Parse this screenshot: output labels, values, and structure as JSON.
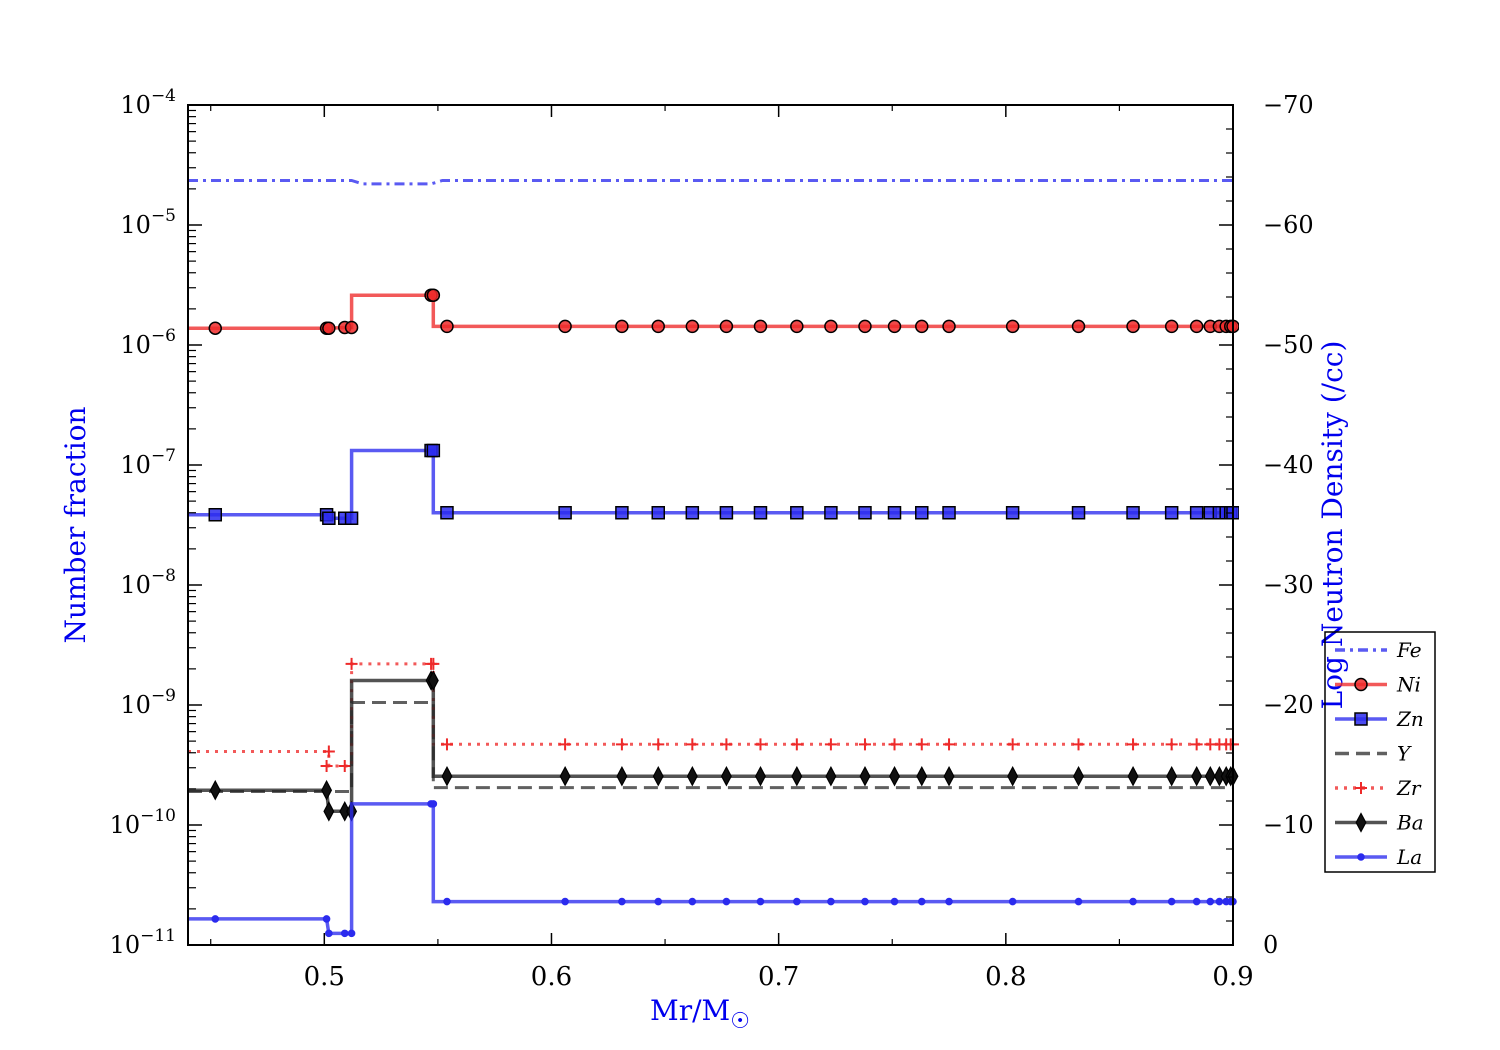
{
  "chart_data": {
    "type": "line",
    "title": "",
    "xlabel": "Mr/M",
    "xlabel_symbol": "☉",
    "ylabel": "Number fraction",
    "y2label": "Log Neutron Density (/cc)",
    "xlim": [
      0.44,
      0.9
    ],
    "ylim": [
      1e-11,
      0.0001
    ],
    "y_scale": "log",
    "y2lim": [
      0,
      -70
    ],
    "x_ticks": [
      0.5,
      0.6,
      0.7,
      0.8,
      0.9
    ],
    "x_tick_labels": [
      "0.5",
      "0.6",
      "0.7",
      "0.8",
      "0.9"
    ],
    "y_tick_bases": [
      "10",
      "10",
      "10",
      "10",
      "10",
      "10",
      "10",
      "10"
    ],
    "y_tick_exponents": [
      "−11",
      "−10",
      "−9",
      "−8",
      "−7",
      "−6",
      "−5",
      "−4"
    ],
    "y2_ticks": [
      0,
      -10,
      -20,
      -30,
      -40,
      -50,
      -60,
      -70
    ],
    "y2_tick_labels": [
      "0",
      "−10",
      "−20",
      "−30",
      "−40",
      "−50",
      "−60",
      "−70"
    ],
    "grid": false,
    "legend_position": "right",
    "colors": {
      "axis_label": "#0000ee",
      "red": "#ee2a2a",
      "blue": "#2b2bee",
      "black": "#222222"
    },
    "series": [
      {
        "name": "Fe",
        "color": "#2b2bee",
        "style": "dashdot",
        "marker": "none",
        "points": [
          [
            0.44,
            2.35e-05
          ],
          [
            0.512,
            2.35e-05
          ],
          [
            0.517,
            2.2e-05
          ],
          [
            0.547,
            2.2e-05
          ],
          [
            0.552,
            2.35e-05
          ],
          [
            0.9,
            2.35e-05
          ]
        ]
      },
      {
        "name": "Ni",
        "color": "#ee2a2a",
        "style": "solid",
        "marker": "circle",
        "points": [
          [
            0.44,
            1.38e-06
          ],
          [
            0.452,
            1.38e-06
          ],
          [
            0.501,
            1.38e-06
          ],
          [
            0.502,
            1.38e-06
          ],
          [
            0.509,
            1.4e-06
          ],
          [
            0.512,
            1.4e-06
          ],
          [
            0.512,
            2.6e-06
          ],
          [
            0.547,
            2.6e-06
          ],
          [
            0.548,
            2.6e-06
          ],
          [
            0.548,
            1.43e-06
          ],
          [
            0.554,
            1.43e-06
          ],
          [
            0.606,
            1.43e-06
          ],
          [
            0.631,
            1.43e-06
          ],
          [
            0.647,
            1.43e-06
          ],
          [
            0.662,
            1.43e-06
          ],
          [
            0.677,
            1.43e-06
          ],
          [
            0.692,
            1.43e-06
          ],
          [
            0.708,
            1.43e-06
          ],
          [
            0.723,
            1.43e-06
          ],
          [
            0.738,
            1.43e-06
          ],
          [
            0.751,
            1.43e-06
          ],
          [
            0.763,
            1.43e-06
          ],
          [
            0.775,
            1.43e-06
          ],
          [
            0.803,
            1.43e-06
          ],
          [
            0.832,
            1.43e-06
          ],
          [
            0.856,
            1.43e-06
          ],
          [
            0.873,
            1.43e-06
          ],
          [
            0.884,
            1.43e-06
          ],
          [
            0.89,
            1.43e-06
          ],
          [
            0.894,
            1.43e-06
          ],
          [
            0.897,
            1.43e-06
          ],
          [
            0.899,
            1.43e-06
          ],
          [
            0.9,
            1.43e-06
          ]
        ],
        "markers": [
          0.452,
          0.501,
          0.502,
          0.509,
          0.512,
          0.547,
          0.548,
          0.554,
          0.606,
          0.631,
          0.647,
          0.662,
          0.677,
          0.692,
          0.708,
          0.723,
          0.738,
          0.751,
          0.763,
          0.775,
          0.803,
          0.832,
          0.856,
          0.873,
          0.884,
          0.89,
          0.894,
          0.897,
          0.899,
          0.9
        ],
        "marker_values": [
          1.38e-06,
          1.38e-06,
          1.38e-06,
          1.4e-06,
          1.4e-06,
          2.6e-06,
          2.6e-06,
          1.43e-06,
          1.43e-06,
          1.43e-06,
          1.43e-06,
          1.43e-06,
          1.43e-06,
          1.43e-06,
          1.43e-06,
          1.43e-06,
          1.43e-06,
          1.43e-06,
          1.43e-06,
          1.43e-06,
          1.43e-06,
          1.43e-06,
          1.43e-06,
          1.43e-06,
          1.43e-06,
          1.43e-06,
          1.43e-06,
          1.43e-06,
          1.43e-06,
          1.43e-06
        ]
      },
      {
        "name": "Zn",
        "color": "#2b2bee",
        "style": "solid",
        "marker": "square",
        "points": [
          [
            0.44,
            3.85e-08
          ],
          [
            0.452,
            3.85e-08
          ],
          [
            0.501,
            3.85e-08
          ],
          [
            0.502,
            3.6e-08
          ],
          [
            0.509,
            3.6e-08
          ],
          [
            0.512,
            3.6e-08
          ],
          [
            0.512,
            1.32e-07
          ],
          [
            0.547,
            1.32e-07
          ],
          [
            0.548,
            1.32e-07
          ],
          [
            0.548,
            4e-08
          ],
          [
            0.554,
            4e-08
          ],
          [
            0.9,
            4e-08
          ]
        ],
        "markers": [
          0.452,
          0.501,
          0.502,
          0.509,
          0.512,
          0.547,
          0.548,
          0.554,
          0.606,
          0.631,
          0.647,
          0.662,
          0.677,
          0.692,
          0.708,
          0.723,
          0.738,
          0.751,
          0.763,
          0.775,
          0.803,
          0.832,
          0.856,
          0.873,
          0.884,
          0.89,
          0.894,
          0.897,
          0.899,
          0.9
        ],
        "marker_values": [
          3.85e-08,
          3.85e-08,
          3.6e-08,
          3.6e-08,
          3.6e-08,
          1.32e-07,
          1.32e-07,
          4e-08,
          4e-08,
          4e-08,
          4e-08,
          4e-08,
          4e-08,
          4e-08,
          4e-08,
          4e-08,
          4e-08,
          4e-08,
          4e-08,
          4e-08,
          4e-08,
          4e-08,
          4e-08,
          4e-08,
          4e-08,
          4e-08,
          4e-08,
          4e-08,
          4e-08,
          4e-08
        ]
      },
      {
        "name": "Y",
        "color": "#333333",
        "style": "dashed",
        "marker": "none",
        "points": [
          [
            0.44,
            1.9e-10
          ],
          [
            0.501,
            1.9e-10
          ],
          [
            0.512,
            1.9e-10
          ],
          [
            0.512,
            1.05e-09
          ],
          [
            0.548,
            1.05e-09
          ],
          [
            0.548,
            2.05e-10
          ],
          [
            0.9,
            2.05e-10
          ]
        ]
      },
      {
        "name": "Zr",
        "color": "#ee2a2a",
        "style": "dotted",
        "marker": "plus",
        "points": [
          [
            0.44,
            4.1e-10
          ],
          [
            0.502,
            4.1e-10
          ],
          [
            0.502,
            3.1e-10
          ],
          [
            0.512,
            3.1e-10
          ],
          [
            0.512,
            2.2e-09
          ],
          [
            0.548,
            2.2e-09
          ],
          [
            0.548,
            4.7e-10
          ],
          [
            0.9,
            4.7e-10
          ]
        ],
        "markers": [
          0.502,
          0.501,
          0.509,
          0.512,
          0.547,
          0.548,
          0.554,
          0.606,
          0.631,
          0.647,
          0.662,
          0.677,
          0.692,
          0.708,
          0.723,
          0.738,
          0.751,
          0.763,
          0.775,
          0.803,
          0.832,
          0.856,
          0.873,
          0.884,
          0.89,
          0.894,
          0.897,
          0.899,
          0.9
        ],
        "marker_values": [
          4.1e-10,
          3.1e-10,
          3.1e-10,
          2.2e-09,
          2.2e-09,
          2.2e-09,
          4.7e-10,
          4.7e-10,
          4.7e-10,
          4.7e-10,
          4.7e-10,
          4.7e-10,
          4.7e-10,
          4.7e-10,
          4.7e-10,
          4.7e-10,
          4.7e-10,
          4.7e-10,
          4.7e-10,
          4.7e-10,
          4.7e-10,
          4.7e-10,
          4.7e-10,
          4.7e-10,
          4.7e-10,
          4.7e-10,
          4.7e-10,
          4.7e-10,
          4.7e-10
        ]
      },
      {
        "name": "Ba",
        "color": "#222222",
        "style": "solid",
        "marker": "diamond",
        "points": [
          [
            0.44,
            1.95e-10
          ],
          [
            0.452,
            1.95e-10
          ],
          [
            0.501,
            1.95e-10
          ],
          [
            0.502,
            1.3e-10
          ],
          [
            0.509,
            1.3e-10
          ],
          [
            0.512,
            1.3e-10
          ],
          [
            0.512,
            1.6e-09
          ],
          [
            0.547,
            1.6e-09
          ],
          [
            0.548,
            1.6e-09
          ],
          [
            0.548,
            2.55e-10
          ],
          [
            0.554,
            2.55e-10
          ],
          [
            0.9,
            2.55e-10
          ]
        ],
        "markers": [
          0.452,
          0.501,
          0.502,
          0.509,
          0.512,
          0.547,
          0.548,
          0.554,
          0.606,
          0.631,
          0.647,
          0.662,
          0.677,
          0.692,
          0.708,
          0.723,
          0.738,
          0.751,
          0.763,
          0.775,
          0.803,
          0.832,
          0.856,
          0.873,
          0.884,
          0.89,
          0.894,
          0.897,
          0.899,
          0.9
        ],
        "marker_values": [
          1.95e-10,
          1.95e-10,
          1.3e-10,
          1.3e-10,
          1.3e-10,
          1.6e-09,
          1.6e-09,
          2.55e-10,
          2.55e-10,
          2.55e-10,
          2.55e-10,
          2.55e-10,
          2.55e-10,
          2.55e-10,
          2.55e-10,
          2.55e-10,
          2.55e-10,
          2.55e-10,
          2.55e-10,
          2.55e-10,
          2.55e-10,
          2.55e-10,
          2.55e-10,
          2.55e-10,
          2.55e-10,
          2.55e-10,
          2.55e-10,
          2.55e-10,
          2.55e-10,
          2.55e-10
        ]
      },
      {
        "name": "La",
        "color": "#2b2bee",
        "style": "solid",
        "marker": "dot",
        "points": [
          [
            0.44,
            1.65e-11
          ],
          [
            0.452,
            1.65e-11
          ],
          [
            0.501,
            1.65e-11
          ],
          [
            0.502,
            1.25e-11
          ],
          [
            0.509,
            1.25e-11
          ],
          [
            0.512,
            1.25e-11
          ],
          [
            0.512,
            1.5e-10
          ],
          [
            0.547,
            1.5e-10
          ],
          [
            0.548,
            1.5e-10
          ],
          [
            0.548,
            2.3e-11
          ],
          [
            0.554,
            2.3e-11
          ],
          [
            0.9,
            2.3e-11
          ]
        ],
        "markers": [
          0.452,
          0.501,
          0.502,
          0.509,
          0.512,
          0.547,
          0.548,
          0.554,
          0.606,
          0.631,
          0.647,
          0.662,
          0.677,
          0.692,
          0.708,
          0.723,
          0.738,
          0.751,
          0.763,
          0.775,
          0.803,
          0.832,
          0.856,
          0.873,
          0.884,
          0.89,
          0.894,
          0.897,
          0.899,
          0.9
        ],
        "marker_values": [
          1.65e-11,
          1.65e-11,
          1.25e-11,
          1.25e-11,
          1.25e-11,
          1.5e-10,
          1.5e-10,
          2.3e-11,
          2.3e-11,
          2.3e-11,
          2.3e-11,
          2.3e-11,
          2.3e-11,
          2.3e-11,
          2.3e-11,
          2.3e-11,
          2.3e-11,
          2.3e-11,
          2.3e-11,
          2.3e-11,
          2.3e-11,
          2.3e-11,
          2.3e-11,
          2.3e-11,
          2.3e-11,
          2.3e-11,
          2.3e-11,
          2.3e-11,
          2.3e-11,
          2.3e-11
        ]
      }
    ]
  }
}
